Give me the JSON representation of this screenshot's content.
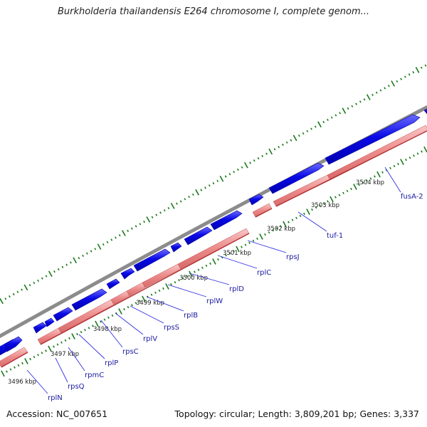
{
  "title": "Burkholderia thailandensis E264 chromosome I, complete genom...",
  "footer": {
    "accession_label": "Accession:",
    "accession": "NC_007651",
    "topology_label": "Topology:",
    "topology": "circular",
    "length_label": "Length:",
    "length": "3,809,201 bp",
    "genes_label": "Genes:",
    "genes": "3,337"
  },
  "colors": {
    "backbone": "#8c8c8c",
    "forward_gene": "#0a0ae6",
    "forward_gene_light": "#5a5aff",
    "reverse_gene": "#ec8a8a",
    "reverse_gene_light": "#f6baba",
    "gc_ticks": "#1a7a1a",
    "label_line": "#3030e0",
    "label_text": "#1a1aa0",
    "kbp_text": "#222222"
  },
  "scale_labels": [
    "3496 kbp",
    "3497 kbp",
    "3498 kbp",
    "3499 kbp",
    "3500 kbp",
    "3501 kbp",
    "3502 kbp",
    "3503 kbp",
    "3504 kbp"
  ],
  "gene_labels": [
    "rplN",
    "rpsQ",
    "rpmC",
    "rplP",
    "rpsC",
    "rplV",
    "rpsS",
    "rplB",
    "rplW",
    "rplD",
    "rplC",
    "rpsJ",
    "tuf-1",
    "fusA-2"
  ]
}
